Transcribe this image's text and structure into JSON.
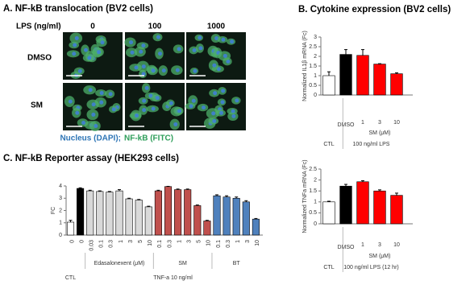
{
  "panel_a": {
    "title": "A. NF-kB translocation (BV2 cells)",
    "lps_label": "LPS (ng/ml)",
    "columns": [
      "0",
      "100",
      "1000"
    ],
    "rows": [
      "DMSO",
      "SM"
    ],
    "legend": [
      "Nucleus (DAPI);",
      "NF-kB (FITC)"
    ]
  },
  "panel_b_title": "B. Cytokine expression (BV2 cells)",
  "chart_data": [
    {
      "type": "bar",
      "ylabel": "Normalized IL1β mRNA (Fc)",
      "categories": [
        "CTL",
        "DMSO",
        "1",
        "3",
        "10"
      ],
      "values": [
        1.0,
        2.1,
        2.05,
        1.6,
        1.1
      ],
      "errors": [
        0.2,
        0.25,
        0.3,
        0.02,
        0.05
      ],
      "colors": [
        "#ffffff",
        "#000000",
        "#ff0000",
        "#ff0000",
        "#ff0000"
      ],
      "groups": [
        "SM (μM)"
      ],
      "footer": "100 ng/ml LPS",
      "ylim": [
        0,
        3
      ],
      "yticks": [
        0,
        0.5,
        1,
        1.5,
        2,
        2.5,
        3
      ]
    },
    {
      "type": "bar",
      "ylabel": "Normalized TNFa mRNA (Fc)",
      "categories": [
        "CTL",
        "DMSO",
        "1",
        "3",
        "10"
      ],
      "values": [
        1.0,
        1.72,
        1.92,
        1.5,
        1.3
      ],
      "errors": [
        0.03,
        0.08,
        0.05,
        0.05,
        0.1
      ],
      "colors": [
        "#ffffff",
        "#000000",
        "#ff0000",
        "#ff0000",
        "#ff0000"
      ],
      "groups": [
        "SM (μM)"
      ],
      "footer": "100 ng/ml LPS (12 hr)",
      "ylim": [
        0,
        2.5
      ],
      "yticks": [
        0,
        0.5,
        1,
        1.5,
        2,
        2.5
      ]
    },
    {
      "type": "bar",
      "title": "C. NF-kB Reporter assay (HEK293 cells)",
      "ylabel": "FC",
      "categories": [
        "0",
        "0",
        "0.03",
        "0.1",
        "0.3",
        "1",
        "3",
        "5",
        "10",
        "0.1",
        "0.3",
        "1",
        "3",
        "5",
        "10",
        "0.1",
        "0.3",
        "1",
        "3",
        "10"
      ],
      "values": [
        1.05,
        3.8,
        3.6,
        3.55,
        3.5,
        3.6,
        2.95,
        2.85,
        2.3,
        3.6,
        3.95,
        3.7,
        3.7,
        2.4,
        1.15,
        3.2,
        3.1,
        3.0,
        2.7,
        1.3
      ],
      "errors": [
        0.15,
        0.05,
        0.05,
        0.05,
        0.05,
        0.1,
        0.05,
        0.05,
        0.05,
        0.05,
        0.02,
        0.05,
        0.05,
        0.05,
        0.05,
        0.08,
        0.1,
        0.1,
        0.1,
        0.05
      ],
      "colors": [
        "#ffffff",
        "#000000",
        "#d9d9d9",
        "#d9d9d9",
        "#d9d9d9",
        "#d9d9d9",
        "#d9d9d9",
        "#d9d9d9",
        "#d9d9d9",
        "#c0504d",
        "#c0504d",
        "#c0504d",
        "#c0504d",
        "#c0504d",
        "#c0504d",
        "#4f81bd",
        "#4f81bd",
        "#4f81bd",
        "#4f81bd",
        "#4f81bd"
      ],
      "groups": [
        "CTL",
        "Edasalonexent (μM)",
        "SM",
        "BT"
      ],
      "footer": "TNF-a 10 ng/ml",
      "ylim": [
        0,
        4
      ],
      "yticks": [
        0,
        1,
        2,
        3,
        4
      ]
    }
  ]
}
